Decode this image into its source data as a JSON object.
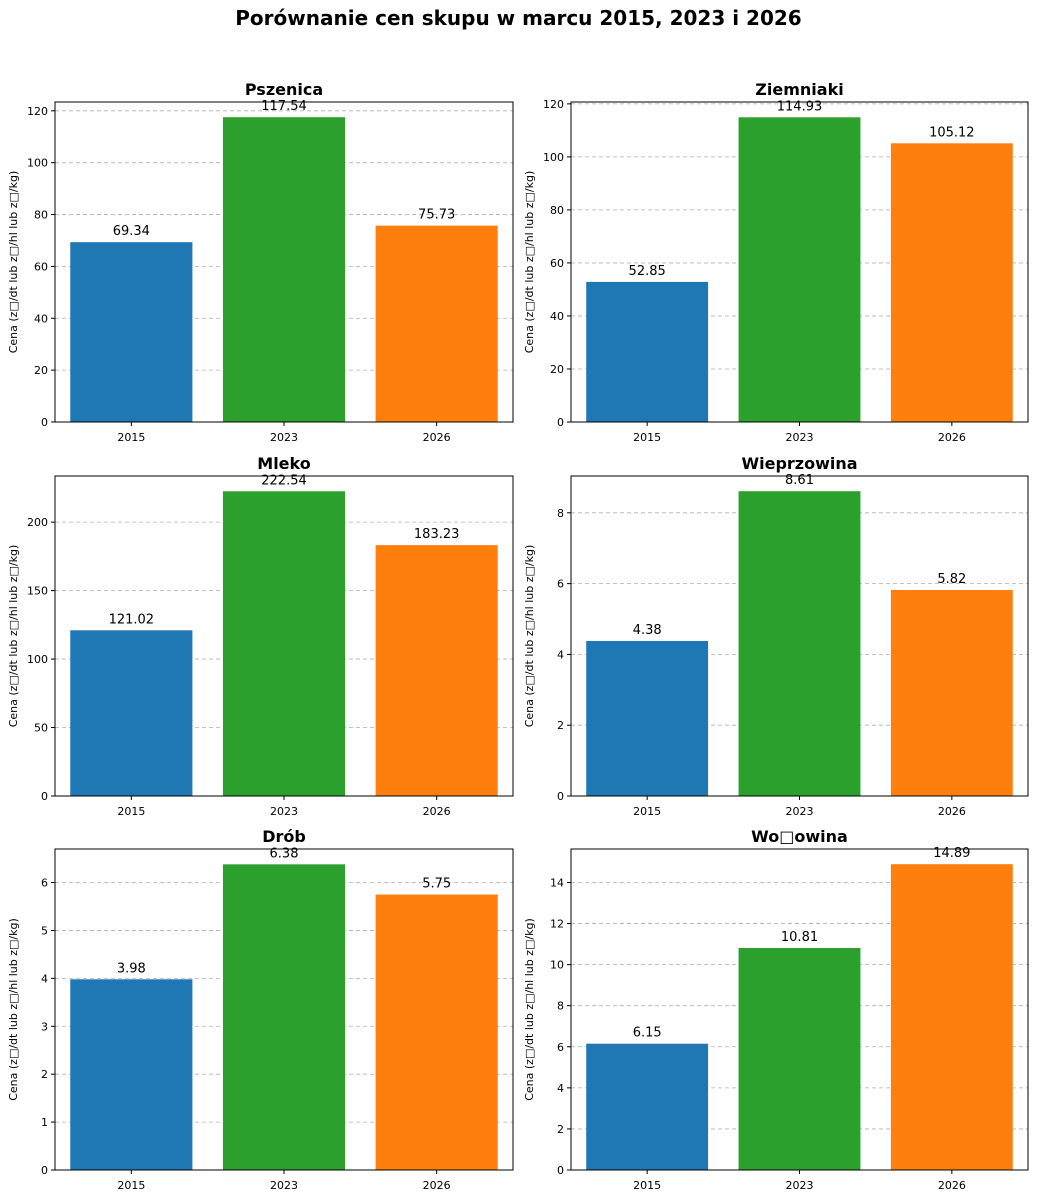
{
  "figure": {
    "title": "Porównanie cen skupu w marcu 2015, 2023 i 2026"
  },
  "chart_data": [
    {
      "type": "bar",
      "title": "Pszenica",
      "ylabel": "Cena (z□/dt lub z□/hl lub z□/kg)",
      "categories": [
        "2015",
        "2023",
        "2026"
      ],
      "values": [
        69.34,
        117.54,
        75.73
      ],
      "value_labels": [
        "69.34",
        "117.54",
        "75.73"
      ],
      "colors": [
        "#1f77b4",
        "#2ca02c",
        "#ff7f0e"
      ],
      "ylim": [
        0,
        123.4
      ],
      "yticks": [
        0,
        20,
        40,
        60,
        80,
        100,
        120
      ],
      "grid": "y-dashed"
    },
    {
      "type": "bar",
      "title": "Ziemniaki",
      "ylabel": "Cena (z□/dt lub z□/hl lub z□/kg)",
      "categories": [
        "2015",
        "2023",
        "2026"
      ],
      "values": [
        52.85,
        114.93,
        105.12
      ],
      "value_labels": [
        "52.85",
        "114.93",
        "105.12"
      ],
      "colors": [
        "#1f77b4",
        "#2ca02c",
        "#ff7f0e"
      ],
      "ylim": [
        0,
        120.7
      ],
      "yticks": [
        0,
        20,
        40,
        60,
        80,
        100,
        120
      ],
      "grid": "y-dashed"
    },
    {
      "type": "bar",
      "title": "Mleko",
      "ylabel": "Cena (z□/dt lub z□/hl lub z□/kg)",
      "categories": [
        "2015",
        "2023",
        "2026"
      ],
      "values": [
        121.02,
        222.54,
        183.23
      ],
      "value_labels": [
        "121.02",
        "222.54",
        "183.23"
      ],
      "colors": [
        "#1f77b4",
        "#2ca02c",
        "#ff7f0e"
      ],
      "ylim": [
        0,
        233.7
      ],
      "yticks": [
        0,
        50,
        100,
        150,
        200
      ],
      "grid": "y-dashed"
    },
    {
      "type": "bar",
      "title": "Wieprzowina",
      "ylabel": "Cena (z□/dt lub z□/hl lub z□/kg)",
      "categories": [
        "2015",
        "2023",
        "2026"
      ],
      "values": [
        4.38,
        8.61,
        5.82
      ],
      "value_labels": [
        "4.38",
        "8.61",
        "5.82"
      ],
      "colors": [
        "#1f77b4",
        "#2ca02c",
        "#ff7f0e"
      ],
      "ylim": [
        0,
        9.04
      ],
      "yticks": [
        0,
        2,
        4,
        6,
        8
      ],
      "grid": "y-dashed"
    },
    {
      "type": "bar",
      "title": "Drób",
      "ylabel": "Cena (z□/dt lub z□/hl lub z□/kg)",
      "categories": [
        "2015",
        "2023",
        "2026"
      ],
      "values": [
        3.98,
        6.38,
        5.75
      ],
      "value_labels": [
        "3.98",
        "6.38",
        "5.75"
      ],
      "colors": [
        "#1f77b4",
        "#2ca02c",
        "#ff7f0e"
      ],
      "ylim": [
        0,
        6.7
      ],
      "yticks": [
        0,
        1,
        2,
        3,
        4,
        5,
        6
      ],
      "grid": "y-dashed"
    },
    {
      "type": "bar",
      "title": "Wo□owina",
      "ylabel": "Cena (z□/dt lub z□/hl lub z□/kg)",
      "categories": [
        "2015",
        "2023",
        "2026"
      ],
      "values": [
        6.15,
        10.81,
        14.89
      ],
      "value_labels": [
        "6.15",
        "10.81",
        "14.89"
      ],
      "colors": [
        "#1f77b4",
        "#2ca02c",
        "#ff7f0e"
      ],
      "ylim": [
        0,
        15.63
      ],
      "yticks": [
        0,
        2,
        4,
        6,
        8,
        10,
        12,
        14
      ],
      "grid": "y-dashed"
    }
  ]
}
